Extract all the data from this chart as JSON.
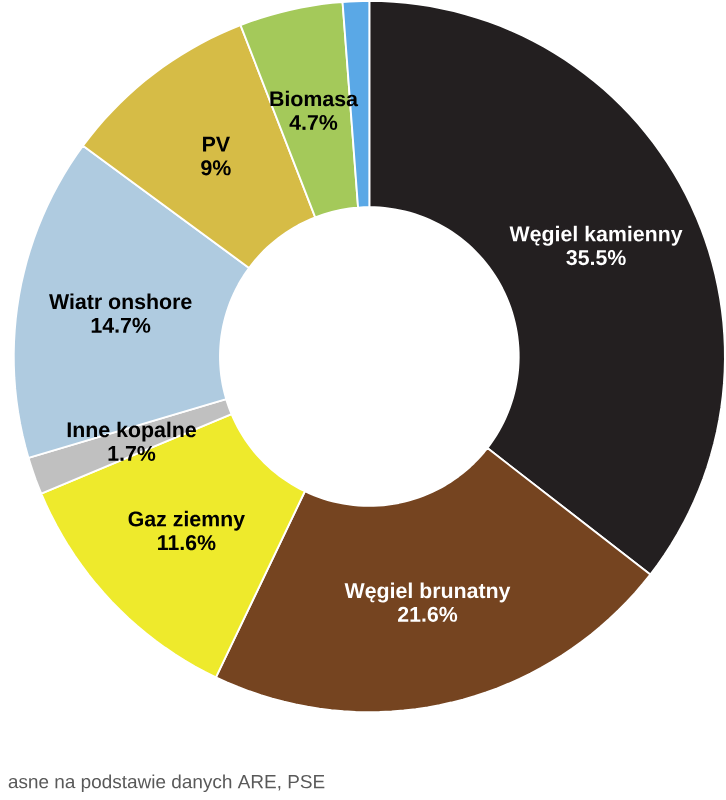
{
  "chart_data": {
    "type": "donut",
    "categories": [
      "Węgiel kamienny",
      "Węgiel brunatny",
      "Gaz ziemny",
      "Inne kopalne",
      "Wiatr onshore",
      "PV",
      "Biomasa",
      null
    ],
    "values": [
      35.5,
      21.6,
      11.6,
      1.7,
      14.7,
      9,
      4.7,
      1.2
    ],
    "value_labels": [
      "35.5%",
      "21.6%",
      "11.6%",
      "1.7%",
      "14.7%",
      "9%",
      "4.7%",
      null
    ],
    "colors": [
      "#231f20",
      "#754420",
      "#eeea2c",
      "#c0c0c0",
      "#afcbe0",
      "#d6bc46",
      "#a4c95a",
      "#5aa8e6"
    ],
    "annotations": [
      "asne na podstawie danych ARE, PSE"
    ]
  }
}
